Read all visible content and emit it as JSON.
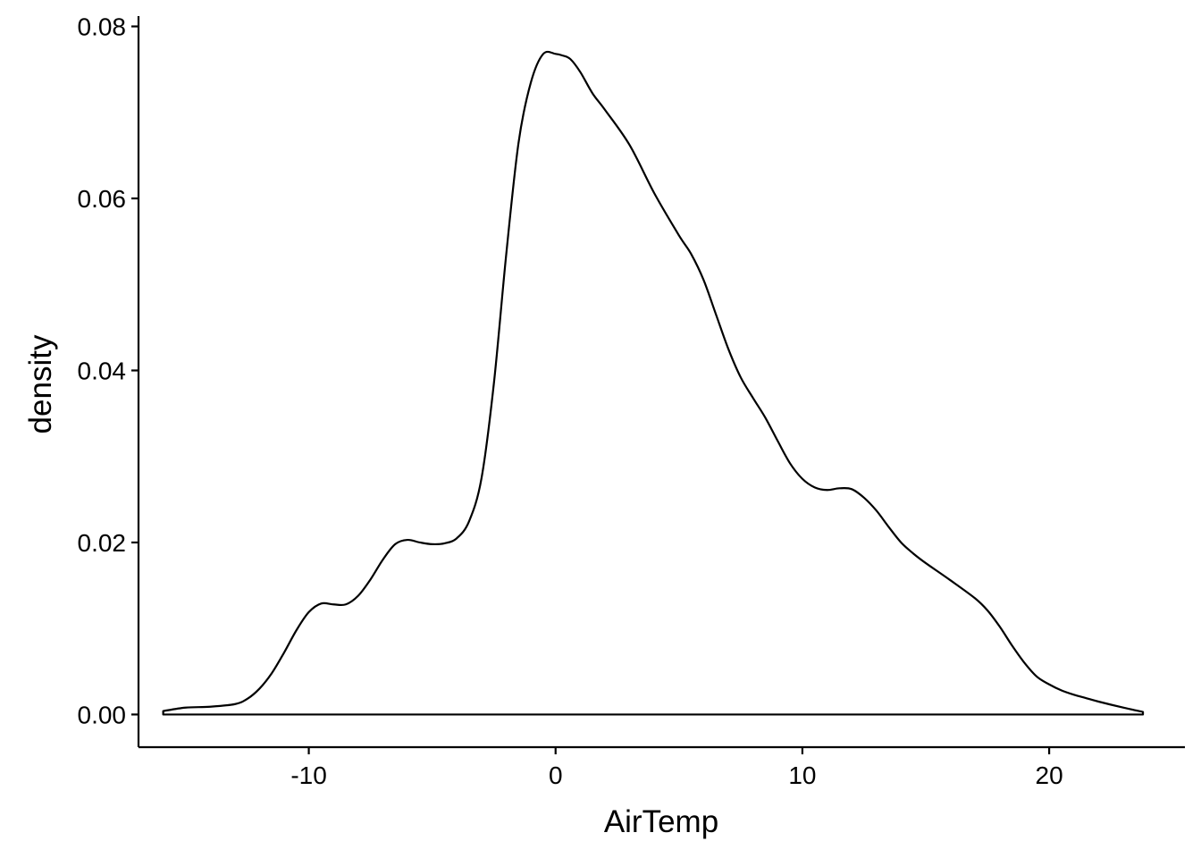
{
  "chart_data": {
    "type": "area",
    "title": "",
    "xlabel": "AirTemp",
    "ylabel": "density",
    "xlim": [
      -16.9,
      25.5
    ],
    "ylim": [
      -0.0038,
      0.0812
    ],
    "x_ticks": [
      {
        "value": -10,
        "label": "-10"
      },
      {
        "value": 0,
        "label": "0"
      },
      {
        "value": 10,
        "label": "10"
      },
      {
        "value": 20,
        "label": "20"
      }
    ],
    "y_ticks": [
      {
        "value": 0.0,
        "label": "0.00"
      },
      {
        "value": 0.02,
        "label": "0.02"
      },
      {
        "value": 0.04,
        "label": "0.04"
      },
      {
        "value": 0.06,
        "label": "0.06"
      },
      {
        "value": 0.08,
        "label": "0.08"
      }
    ],
    "grid": false,
    "legend": "none",
    "series": [
      {
        "x": [
          -15.9,
          -15.0,
          -14.0,
          -13.0,
          -12.5,
          -12.0,
          -11.5,
          -11.0,
          -10.5,
          -10.0,
          -9.5,
          -9.0,
          -8.5,
          -8.0,
          -7.5,
          -7.0,
          -6.5,
          -6.0,
          -5.5,
          -5.0,
          -4.5,
          -4.0,
          -3.5,
          -3.0,
          -2.5,
          -2.0,
          -1.5,
          -1.0,
          -0.5,
          0.0,
          0.3,
          0.6,
          1.0,
          1.5,
          2.0,
          3.0,
          4.0,
          5.0,
          5.5,
          6.0,
          6.5,
          7.0,
          7.5,
          8.0,
          8.5,
          9.0,
          9.5,
          10.0,
          10.5,
          11.0,
          11.5,
          12.0,
          12.5,
          13.0,
          13.5,
          14.0,
          14.5,
          15.0,
          16.0,
          17.0,
          17.5,
          18.0,
          18.5,
          19.0,
          19.5,
          20.0,
          20.5,
          21.0,
          21.5,
          22.0,
          23.0,
          23.8
        ],
        "y": [
          0.0004,
          0.0008,
          0.0009,
          0.0012,
          0.0018,
          0.003,
          0.0048,
          0.0072,
          0.0098,
          0.0119,
          0.0129,
          0.0128,
          0.0128,
          0.0138,
          0.0157,
          0.018,
          0.0198,
          0.0203,
          0.02,
          0.0198,
          0.0199,
          0.0205,
          0.0225,
          0.0275,
          0.0385,
          0.0535,
          0.0665,
          0.0735,
          0.0768,
          0.0768,
          0.0766,
          0.0762,
          0.0747,
          0.0722,
          0.0703,
          0.0662,
          0.0606,
          0.0557,
          0.0535,
          0.0505,
          0.0465,
          0.0425,
          0.0392,
          0.0368,
          0.0345,
          0.0318,
          0.0292,
          0.0274,
          0.0264,
          0.0261,
          0.0263,
          0.0262,
          0.0252,
          0.0237,
          0.0218,
          0.02,
          0.0187,
          0.0176,
          0.0156,
          0.0135,
          0.0121,
          0.0102,
          0.008,
          0.006,
          0.0044,
          0.0035,
          0.0028,
          0.0023,
          0.0019,
          0.0015,
          0.0008,
          0.0003
        ]
      }
    ]
  }
}
